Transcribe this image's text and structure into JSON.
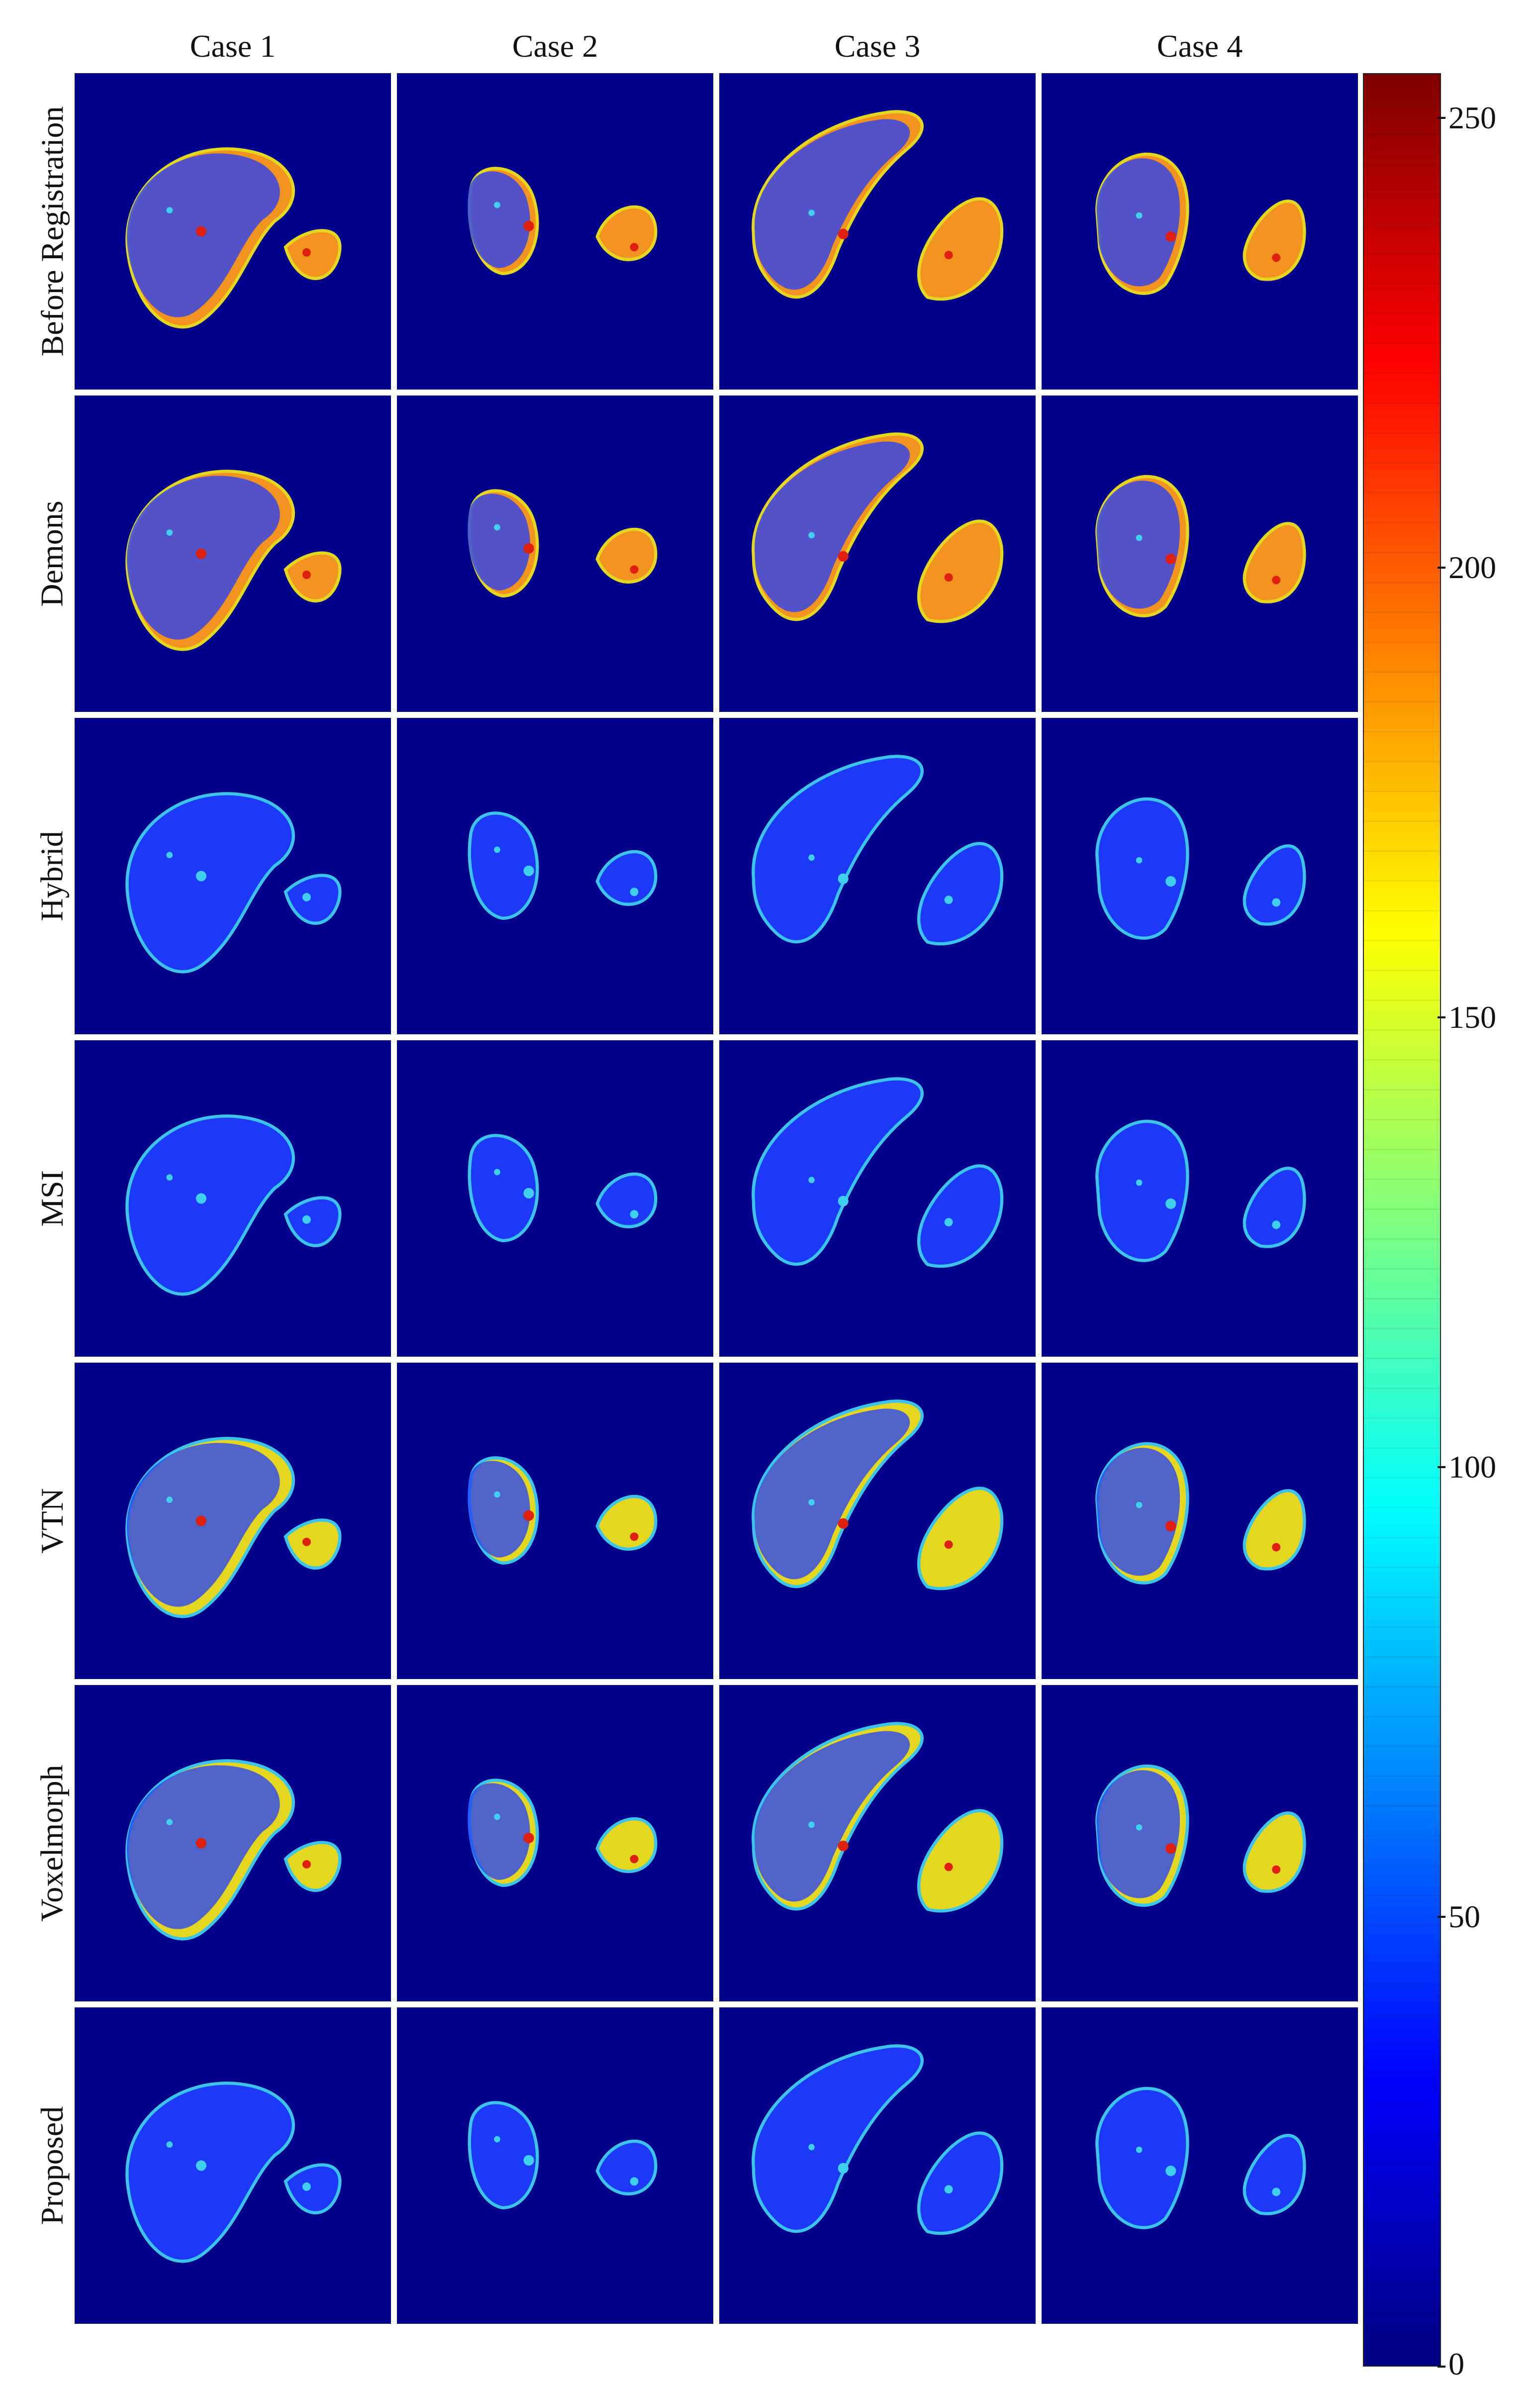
{
  "columns": [
    "Case 1",
    "Case 2",
    "Case 3",
    "Case 4"
  ],
  "rows": [
    "Before Registration",
    "Demons",
    "Hybrid",
    "MSI",
    "VTN",
    "Voxelmorph",
    "Proposed"
  ],
  "colorbar": {
    "colormap": "jet",
    "min": 0,
    "max": 255,
    "ticks": [
      "250",
      "200",
      "150",
      "100",
      "50",
      "0"
    ],
    "tick_values": [
      250,
      200,
      150,
      100,
      50,
      0
    ]
  },
  "colors": {
    "background": "#00008b",
    "low": "#1e3cff",
    "cyan": "#3fd0f0",
    "green": "#9bdc5a",
    "yellow": "#f2e31a",
    "orange": "#ff9a1a",
    "red": "#e0200e"
  },
  "panel_style": {
    "Before Registration": "orange",
    "Demons": "orange",
    "Hybrid": "low",
    "MSI": "low",
    "VTN": "yellow",
    "Voxelmorph": "yellow",
    "Proposed": "low"
  }
}
